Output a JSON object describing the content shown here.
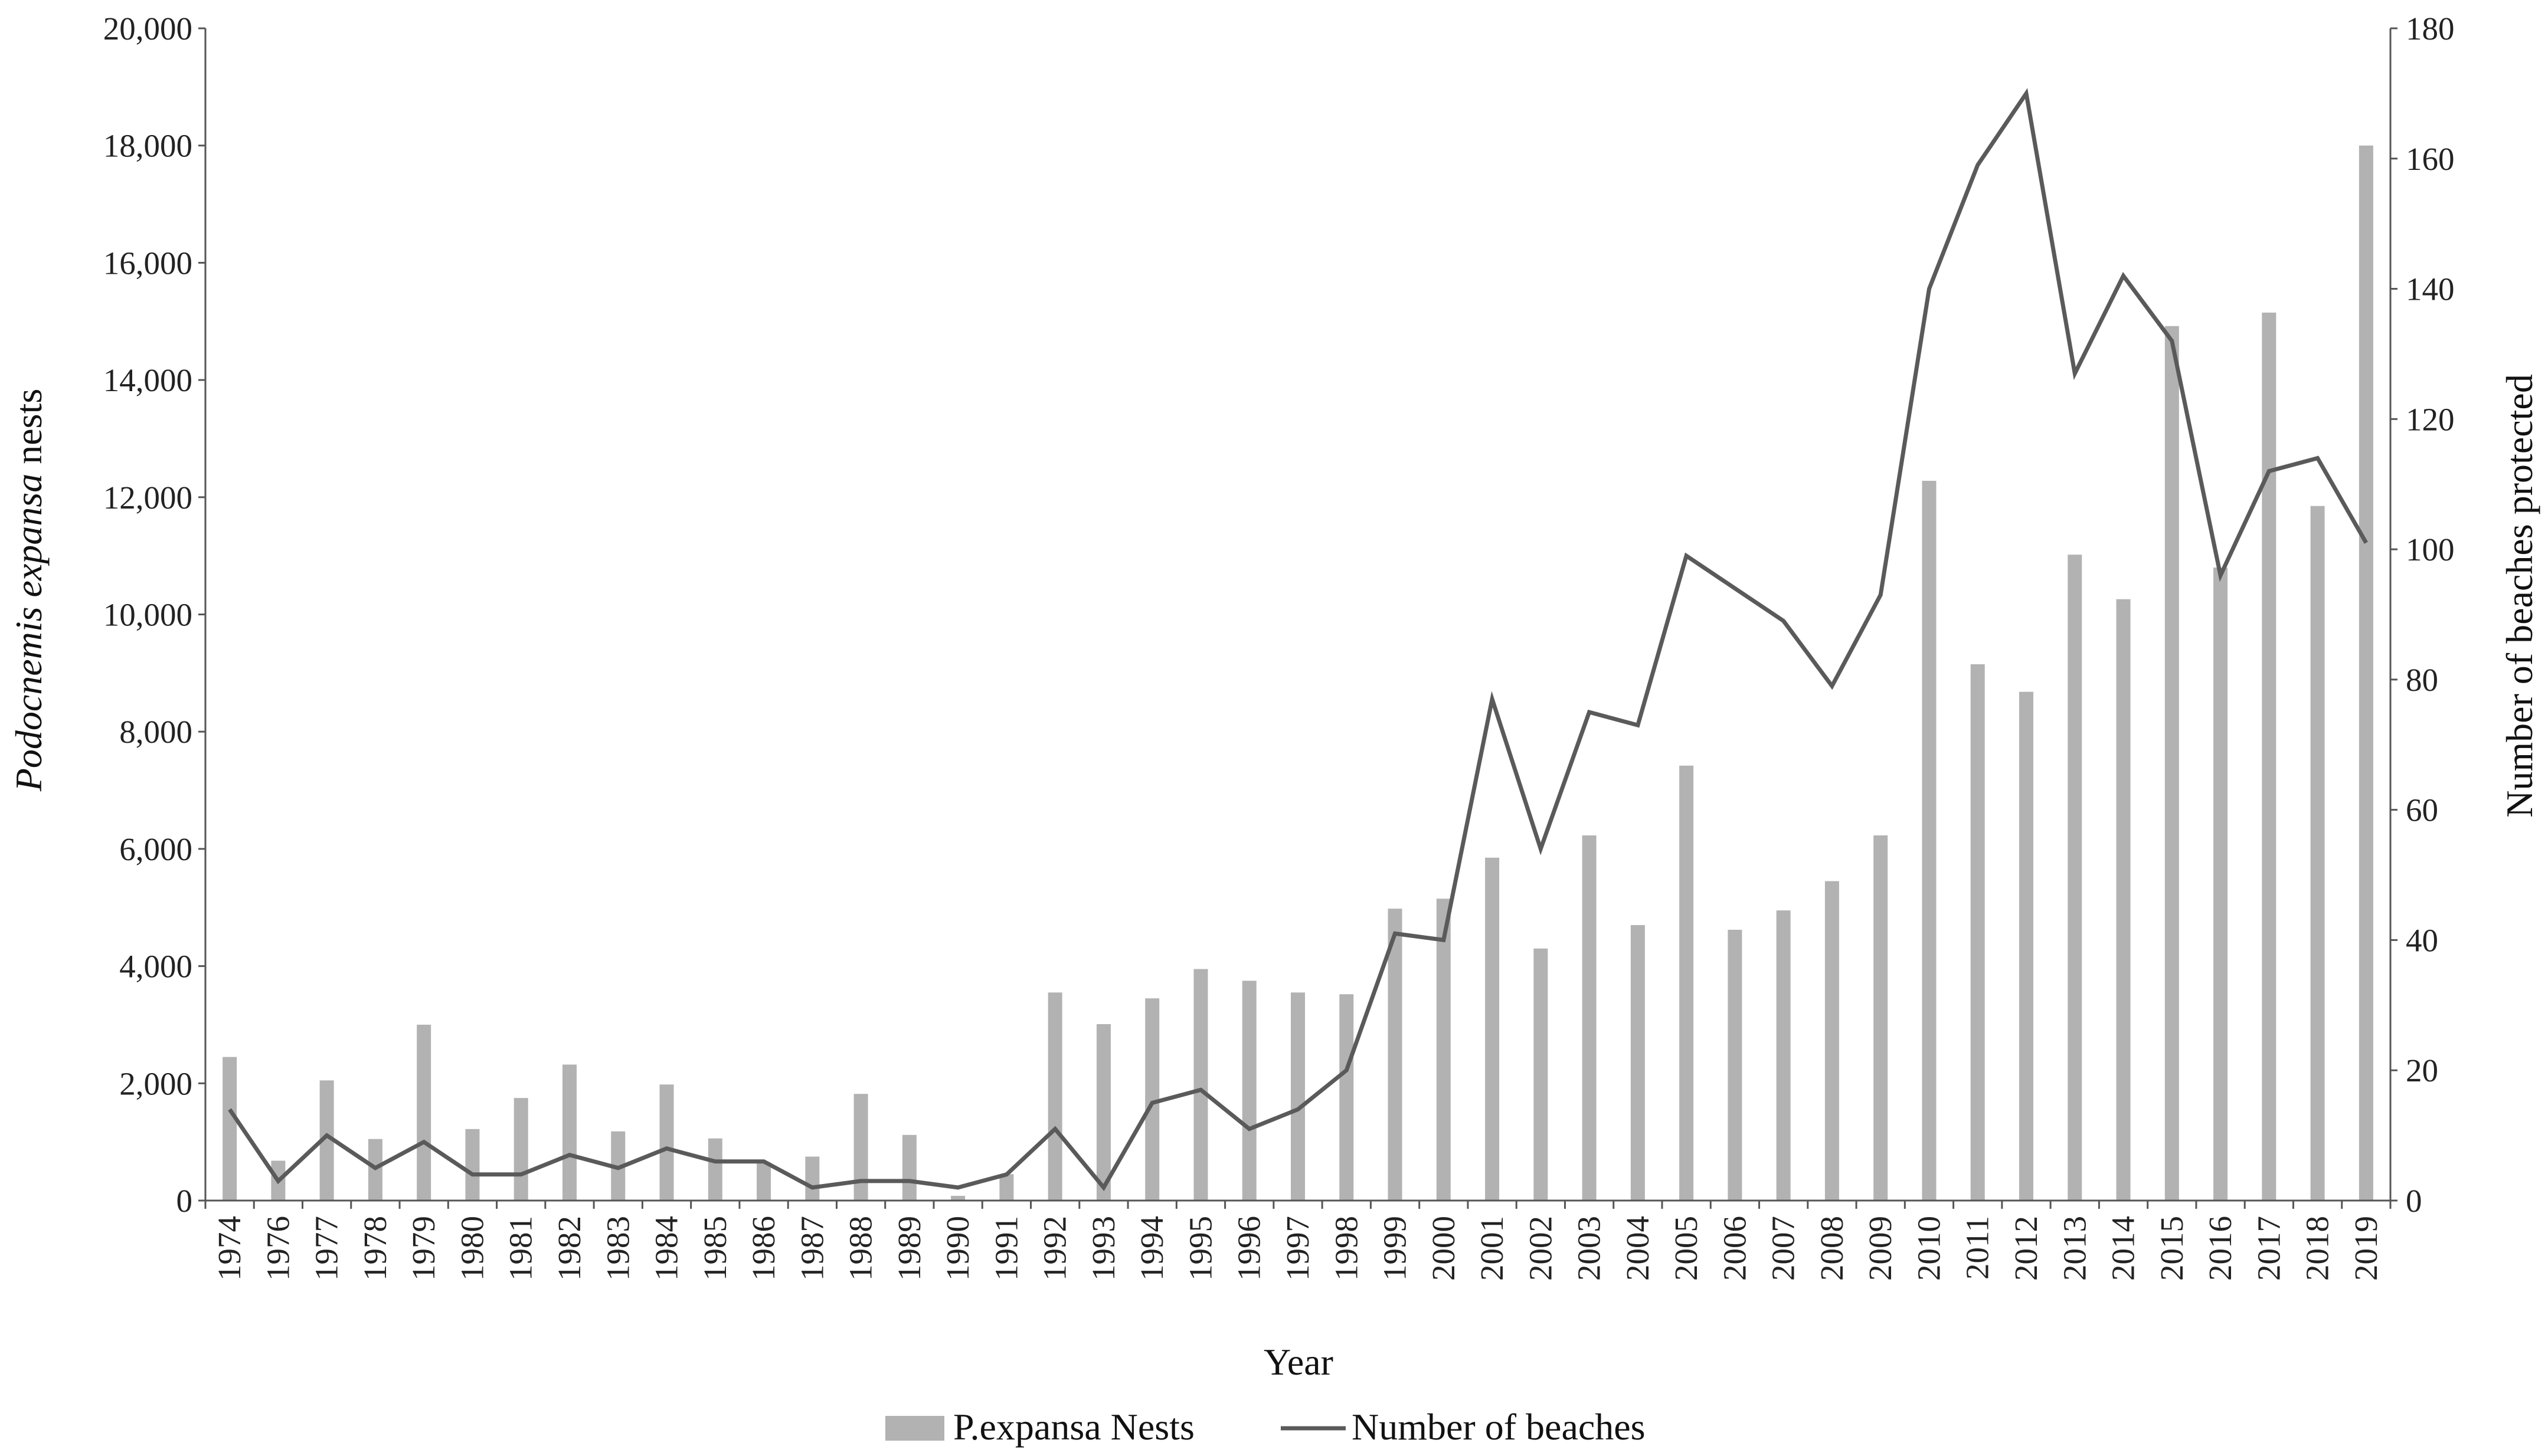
{
  "chart_data": {
    "type": "bar",
    "title": "",
    "categories": [
      "1974",
      "1976",
      "1977",
      "1978",
      "1979",
      "1980",
      "1981",
      "1982",
      "1983",
      "1984",
      "1985",
      "1986",
      "1987",
      "1988",
      "1989",
      "1990",
      "1991",
      "1992",
      "1993",
      "1994",
      "1995",
      "1996",
      "1997",
      "1998",
      "1999",
      "2000",
      "2001",
      "2002",
      "2003",
      "2004",
      "2005",
      "2006",
      "2007",
      "2008",
      "2009",
      "2010",
      "2011",
      "2012",
      "2013",
      "2014",
      "2015",
      "2016",
      "2017",
      "2018",
      "2019"
    ],
    "series": [
      {
        "name": "P.expansa Nests",
        "type": "bar",
        "axis": "left",
        "color": "#b2b2b2",
        "values": [
          2450,
          680,
          2050,
          1050,
          3000,
          1220,
          1750,
          2320,
          1180,
          1980,
          1060,
          650,
          750,
          1820,
          1120,
          80,
          450,
          3550,
          3010,
          3450,
          3950,
          3750,
          3550,
          3520,
          4980,
          5150,
          5850,
          4300,
          6230,
          4700,
          7420,
          4620,
          4950,
          5450,
          6230,
          12280,
          9150,
          8680,
          11020,
          10260,
          14920,
          10800,
          15150,
          11850,
          18000
        ]
      },
      {
        "name": "Number of beaches",
        "type": "line",
        "axis": "right",
        "color": "#5a5a5a",
        "values": [
          14,
          3,
          10,
          5,
          9,
          4,
          4,
          7,
          5,
          8,
          6,
          6,
          2,
          3,
          3,
          2,
          4,
          11,
          2,
          15,
          17,
          11,
          14,
          20,
          41,
          40,
          77,
          54,
          75,
          73,
          99,
          94,
          89,
          79,
          93,
          140,
          159,
          170,
          127,
          142,
          132,
          96,
          112,
          114,
          101
        ]
      }
    ],
    "xlabel": "Year",
    "ylabel_left_prefix": "Podocnemis expansa",
    "ylabel_left_suffix": " nests",
    "ylabel_right": "Number of beaches protected",
    "ylim_left": [
      0,
      20000
    ],
    "ylim_right": [
      0,
      180
    ],
    "yticks_left": [
      "0",
      "2,000",
      "4,000",
      "6,000",
      "8,000",
      "10,000",
      "12,000",
      "14,000",
      "16,000",
      "18,000",
      "20,000"
    ],
    "yticks_right": [
      "0",
      "20",
      "40",
      "60",
      "80",
      "100",
      "120",
      "140",
      "160",
      "180"
    ],
    "legend_position": "bottom",
    "grid": false
  }
}
